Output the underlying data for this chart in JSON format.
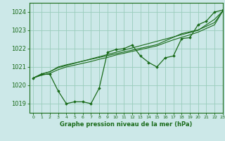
{
  "xlabel": "Graphe pression niveau de la mer (hPa)",
  "x_ticks": [
    0,
    1,
    2,
    3,
    4,
    5,
    6,
    7,
    8,
    9,
    10,
    11,
    12,
    13,
    14,
    15,
    16,
    17,
    18,
    19,
    20,
    21,
    22,
    23
  ],
  "ylim": [
    1018.5,
    1024.5
  ],
  "xlim": [
    -0.5,
    23
  ],
  "yticks": [
    1019,
    1020,
    1021,
    1022,
    1023,
    1024
  ],
  "bg_color": "#cce8e8",
  "grid_color": "#99ccbb",
  "line_color": "#1a6b1a",
  "marker_color": "#1a6b1a",
  "series0": [
    1020.4,
    1020.6,
    1020.6,
    1019.7,
    1019.0,
    1019.1,
    1019.1,
    1019.0,
    1019.85,
    1021.8,
    1021.95,
    1022.0,
    1022.2,
    1021.6,
    1021.25,
    1021.0,
    1021.5,
    1021.6,
    1022.55,
    1022.6,
    1023.3,
    1023.5,
    1024.0,
    1024.1
  ],
  "series1": [
    1020.4,
    1020.62,
    1020.74,
    1020.96,
    1021.08,
    1021.2,
    1021.32,
    1021.44,
    1021.56,
    1021.68,
    1021.8,
    1021.92,
    1022.04,
    1022.16,
    1022.28,
    1022.4,
    1022.52,
    1022.64,
    1022.76,
    1022.88,
    1023.0,
    1023.3,
    1023.6,
    1024.05
  ],
  "series2": [
    1020.4,
    1020.62,
    1020.74,
    1021.0,
    1021.12,
    1021.22,
    1021.32,
    1021.42,
    1021.52,
    1021.62,
    1021.72,
    1021.82,
    1021.92,
    1022.02,
    1022.12,
    1022.22,
    1022.42,
    1022.62,
    1022.82,
    1022.92,
    1023.02,
    1023.22,
    1023.42,
    1024.05
  ],
  "series3": [
    1020.4,
    1020.55,
    1020.65,
    1020.85,
    1021.0,
    1021.1,
    1021.2,
    1021.3,
    1021.42,
    1021.52,
    1021.65,
    1021.75,
    1021.85,
    1021.95,
    1022.05,
    1022.15,
    1022.32,
    1022.48,
    1022.62,
    1022.75,
    1022.9,
    1023.1,
    1023.3,
    1024.05
  ],
  "xlabel_fontsize": 6.0,
  "ytick_fontsize": 6.0,
  "xtick_fontsize": 4.5
}
